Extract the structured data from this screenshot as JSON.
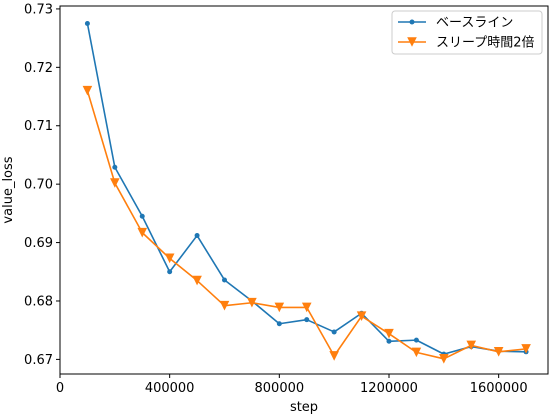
{
  "chart_data": {
    "type": "line",
    "xlabel": "step",
    "ylabel": "value_loss",
    "xlim": [
      0,
      1780000
    ],
    "ylim": [
      0.6675,
      0.7305
    ],
    "xticks": [
      0,
      400000,
      800000,
      1200000,
      1600000
    ],
    "yticks": [
      0.67,
      0.68,
      0.69,
      0.7,
      0.71,
      0.72,
      0.73
    ],
    "ytick_labels": [
      "0.67",
      "0.68",
      "0.69",
      "0.70",
      "0.71",
      "0.72",
      "0.73"
    ],
    "grid": false,
    "legend_position": "top-right",
    "x": [
      100000,
      200000,
      300000,
      400000,
      500000,
      600000,
      700000,
      800000,
      900000,
      1000000,
      1100000,
      1200000,
      1300000,
      1400000,
      1500000,
      1600000,
      1700000
    ],
    "series": [
      {
        "name": "ベースライン",
        "color": "#1f77b4",
        "marker": "circle",
        "values": [
          0.7275,
          0.7029,
          0.6945,
          0.685,
          0.6912,
          0.6836,
          0.68,
          0.6761,
          0.6768,
          0.6747,
          0.6779,
          0.6731,
          0.6733,
          0.6709,
          0.6722,
          0.6714,
          0.6713
        ]
      },
      {
        "name": "スリープ時間2倍",
        "color": "#ff7f0e",
        "marker": "triangle-down",
        "values": [
          0.716,
          0.7002,
          0.6917,
          0.6873,
          0.6835,
          0.6792,
          0.6797,
          0.6789,
          0.6789,
          0.6706,
          0.6774,
          0.6744,
          0.6712,
          0.6701,
          0.6724,
          0.6713,
          0.6718
        ]
      }
    ]
  }
}
